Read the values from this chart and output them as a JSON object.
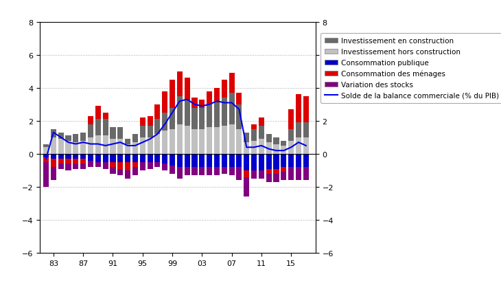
{
  "years": [
    1982,
    1983,
    1984,
    1985,
    1986,
    1987,
    1988,
    1989,
    1990,
    1991,
    1992,
    1993,
    1994,
    1995,
    1996,
    1997,
    1998,
    1999,
    2000,
    2001,
    2002,
    2003,
    2004,
    2005,
    2006,
    2007,
    2008,
    2009,
    2010,
    2011,
    2012,
    2013,
    2014,
    2015,
    2016,
    2017
  ],
  "inv_hors_const": [
    0.4,
    1.0,
    0.9,
    0.8,
    0.7,
    0.8,
    1.0,
    1.1,
    1.1,
    0.9,
    0.9,
    0.6,
    0.7,
    1.0,
    1.0,
    1.2,
    1.4,
    1.5,
    1.8,
    1.7,
    1.5,
    1.5,
    1.6,
    1.6,
    1.7,
    1.8,
    1.5,
    0.7,
    0.8,
    0.9,
    0.7,
    0.6,
    0.5,
    0.8,
    1.0,
    1.0
  ],
  "inv_const": [
    0.2,
    0.5,
    0.4,
    0.3,
    0.5,
    0.5,
    0.8,
    1.0,
    1.0,
    0.7,
    0.7,
    0.3,
    0.5,
    0.7,
    0.7,
    0.9,
    1.1,
    1.3,
    1.7,
    1.6,
    1.3,
    1.3,
    1.4,
    1.5,
    1.7,
    1.9,
    1.5,
    0.6,
    0.7,
    0.8,
    0.5,
    0.4,
    0.3,
    0.7,
    0.9,
    0.9
  ],
  "conso_pub": [
    -0.2,
    -0.3,
    -0.3,
    -0.3,
    -0.3,
    -0.3,
    -0.4,
    -0.5,
    -0.5,
    -0.5,
    -0.5,
    -0.5,
    -0.5,
    -0.5,
    -0.5,
    -0.5,
    -0.6,
    -0.7,
    -0.8,
    -0.8,
    -0.8,
    -0.8,
    -0.8,
    -0.8,
    -0.8,
    -0.8,
    -0.8,
    -1.0,
    -1.0,
    -1.0,
    -0.9,
    -0.9,
    -0.8,
    -0.8,
    -0.8,
    -0.8
  ],
  "conso_men": [
    -0.3,
    -0.5,
    -0.3,
    -0.3,
    -0.3,
    -0.3,
    0.5,
    0.8,
    0.4,
    -0.3,
    -0.4,
    -0.5,
    -0.3,
    0.5,
    0.6,
    0.9,
    1.3,
    1.7,
    1.5,
    1.3,
    0.6,
    0.5,
    0.8,
    0.9,
    1.1,
    1.2,
    0.7,
    -0.4,
    0.3,
    0.5,
    -0.3,
    -0.3,
    -0.3,
    1.2,
    1.7,
    1.6
  ],
  "var_stocks": [
    -1.5,
    -0.8,
    -0.3,
    -0.4,
    -0.3,
    -0.3,
    -0.4,
    -0.3,
    -0.4,
    -0.4,
    -0.4,
    -0.5,
    -0.5,
    -0.5,
    -0.4,
    -0.3,
    -0.4,
    -0.5,
    -0.7,
    -0.5,
    -0.5,
    -0.5,
    -0.5,
    -0.5,
    -0.4,
    -0.5,
    -0.8,
    -1.2,
    -0.5,
    -0.5,
    -0.5,
    -0.5,
    -0.5,
    -0.8,
    -0.8,
    -0.8
  ],
  "solde": [
    -0.3,
    1.3,
    1.0,
    0.7,
    0.6,
    0.7,
    0.6,
    0.6,
    0.5,
    0.6,
    0.7,
    0.5,
    0.5,
    0.7,
    0.9,
    1.2,
    1.8,
    2.5,
    3.2,
    3.3,
    3.0,
    2.9,
    3.0,
    3.2,
    3.1,
    3.1,
    2.7,
    0.4,
    0.4,
    0.5,
    0.3,
    0.2,
    0.2,
    0.4,
    0.7,
    0.5
  ],
  "colors": {
    "inv_const": "#696969",
    "inv_hors_const": "#c0c0c0",
    "conso_pub": "#0000cc",
    "conso_men": "#dd0000",
    "var_stocks": "#800080",
    "solde_line": "#0000ee"
  },
  "ylim": [
    -6,
    8
  ],
  "yticks": [
    -6,
    -4,
    -2,
    0,
    2,
    4,
    6,
    8
  ],
  "xtick_labels": [
    "83",
    "87",
    "91",
    "95",
    "99",
    "03",
    "07",
    "11",
    "15"
  ],
  "xtick_positions": [
    1983,
    1987,
    1991,
    1995,
    1999,
    2003,
    2007,
    2011,
    2015
  ]
}
